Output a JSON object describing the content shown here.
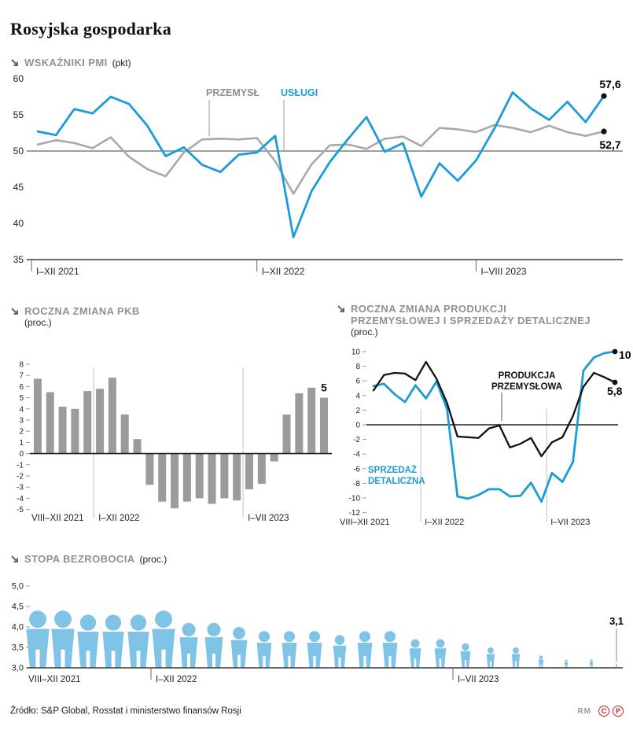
{
  "page_title": "Rosyjska gospodarka",
  "footer": {
    "source": "Źródło: S&P Global, Rosstat i ministerstwo finansów Rosji",
    "credit": "RM",
    "copyright_badges": [
      "C",
      "P"
    ]
  },
  "colors": {
    "blue": "#1b9cd8",
    "gray_line": "#a9a9a9",
    "black_line": "#111111",
    "bar_gray": "#9b9b9b",
    "person_blue": "#7fc4e6",
    "header_gray": "#919191",
    "badge_red": "#cc2027"
  },
  "chart_data": [
    {
      "id": "pmi",
      "type": "line",
      "title": "WSKAŹNIKI PMI",
      "unit": "(pkt)",
      "ylim": [
        35,
        60
      ],
      "yticks": [
        60,
        55,
        50,
        45,
        40,
        35
      ],
      "baseline_value": 50,
      "grid": "baseline-only",
      "x_tick_indices": [
        0,
        12,
        24
      ],
      "x_tick_labels": [
        "I–XII 2021",
        "I–XII 2022",
        "I–VIII 2023"
      ],
      "series": [
        {
          "name": "PRZEMYSŁ",
          "color": "#a9a9a9",
          "end_label": "52,7",
          "values": [
            50.9,
            51.5,
            51.1,
            50.4,
            51.9,
            49.2,
            47.5,
            46.5,
            49.8,
            51.6,
            51.7,
            51.6,
            51.8,
            48.6,
            44.1,
            48.2,
            50.8,
            50.9,
            50.3,
            51.7,
            52.0,
            50.7,
            53.2,
            53.0,
            52.6,
            53.6,
            53.2,
            52.6,
            53.5,
            52.6,
            52.1,
            52.7
          ]
        },
        {
          "name": "USŁUGI",
          "color": "#1b9cd8",
          "end_label": "57,6",
          "values": [
            52.7,
            52.2,
            55.8,
            55.2,
            57.5,
            56.5,
            53.5,
            49.3,
            50.5,
            48.1,
            47.1,
            49.5,
            49.8,
            52.1,
            38.1,
            44.5,
            48.5,
            51.7,
            54.7,
            49.9,
            51.1,
            43.7,
            48.3,
            45.9,
            48.7,
            53.1,
            58.1,
            55.9,
            54.3,
            56.8,
            54.0,
            57.6
          ]
        }
      ]
    },
    {
      "id": "pkb",
      "type": "bar",
      "title": "ROCZNA ZMIANA PKB",
      "unit": "(proc.)",
      "ylim": [
        -5,
        8
      ],
      "yticks": [
        8,
        7,
        6,
        5,
        4,
        3,
        2,
        1,
        0,
        -1,
        -2,
        -3,
        -4,
        -5
      ],
      "bar_color": "#9b9b9b",
      "end_label": "5",
      "x_tick_indices": [
        0,
        5,
        17
      ],
      "x_tick_labels": [
        "VIII–XII 2021",
        "I–XII 2022",
        "I–VII 2023"
      ],
      "values": [
        6.7,
        5.5,
        4.2,
        4.0,
        5.6,
        5.8,
        6.8,
        3.5,
        1.3,
        -2.8,
        -4.3,
        -4.9,
        -4.3,
        -4.0,
        -4.5,
        -4.0,
        -4.2,
        -3.2,
        -2.7,
        -0.7,
        3.5,
        5.4,
        5.9,
        5.0
      ]
    },
    {
      "id": "produkcja_sprzedaz",
      "type": "line",
      "title": "ROCZNA ZMIANA PRODUKCJI PRZEMYSŁOWEJ I SPRZEDAŻY DETALICZNEJ",
      "title_lines": [
        "ROCZNA ZMIANA PRODUKCJI",
        "PRZEMYSŁOWEJ I SPRZEDAŻY DETALICZNEJ"
      ],
      "unit": "(proc.)",
      "ylim": [
        -12,
        10
      ],
      "yticks": [
        10,
        8,
        6,
        4,
        2,
        0,
        -2,
        -4,
        -6,
        -8,
        -10,
        -12
      ],
      "x_tick_indices": [
        0,
        5,
        17
      ],
      "x_tick_labels": [
        "VIII–XII 2021",
        "I–XII 2022",
        "I–VII 2023"
      ],
      "series": [
        {
          "name": "PRODUKCJA PRZEMYSŁOWA",
          "color": "#111111",
          "end_label": "5,8",
          "values": [
            4.7,
            6.8,
            7.1,
            7.0,
            6.1,
            8.6,
            6.3,
            3.0,
            -1.6,
            -1.7,
            -1.8,
            -0.5,
            -0.1,
            -3.1,
            -2.6,
            -1.8,
            -4.3,
            -2.4,
            -1.7,
            1.2,
            5.2,
            7.1,
            6.5,
            5.8
          ]
        },
        {
          "name": "SPRZEDAŻ DETALICZNA",
          "color": "#1b9cd8",
          "end_label": "10",
          "values": [
            5.3,
            5.6,
            4.2,
            3.1,
            5.4,
            3.6,
            5.9,
            2.2,
            -9.8,
            -10.1,
            -9.6,
            -8.8,
            -8.8,
            -9.8,
            -9.7,
            -7.9,
            -10.5,
            -6.6,
            -7.8,
            -5.1,
            7.4,
            9.2,
            9.8,
            10.0
          ]
        }
      ]
    },
    {
      "id": "bezrobocie",
      "type": "pictogram",
      "title": "STOPA BEZROBOCIA",
      "unit": "(proc.)",
      "icon": "person-icon",
      "icon_color": "#7fc4e6",
      "ylim": [
        3.0,
        5.0
      ],
      "yticks": [
        "5,0",
        "4,5",
        "4,0",
        "3,5",
        "3,0"
      ],
      "end_label": "3,1",
      "x_tick_indices": [
        0,
        5,
        17
      ],
      "x_tick_labels": [
        "VIII–XII 2021",
        "I–XII 2022",
        "I–VII 2023"
      ],
      "values": [
        4.4,
        4.4,
        4.3,
        4.3,
        4.3,
        4.4,
        4.1,
        4.1,
        4.0,
        3.9,
        3.9,
        3.9,
        3.8,
        3.9,
        3.9,
        3.7,
        3.7,
        3.6,
        3.5,
        3.5,
        3.3,
        3.2,
        3.2,
        3.1
      ]
    }
  ]
}
